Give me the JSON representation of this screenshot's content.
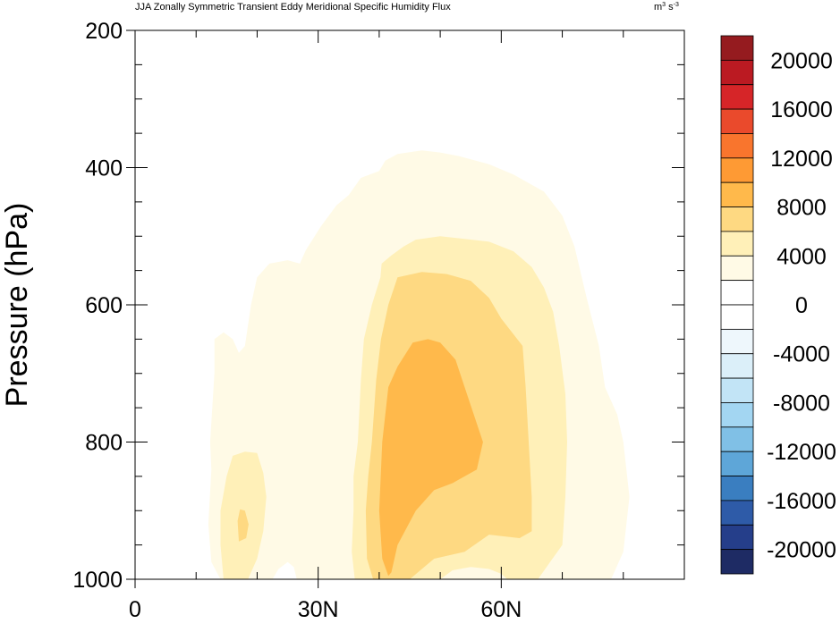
{
  "chart_data": {
    "type": "contour",
    "title": "JJA Zonally Symmetric Transient Eddy Meridional Specific Humidity Flux",
    "units_base": "m",
    "units_exp1": "3",
    "units_mid": " s",
    "units_exp2": "-3",
    "ylabel": "Pressure (hPa)",
    "xlabel": "",
    "x_range": [
      0,
      90
    ],
    "y_range": [
      1000,
      200
    ],
    "x_ticks": [
      {
        "value": 0,
        "label": "0"
      },
      {
        "value": 30,
        "label": "30N"
      },
      {
        "value": 60,
        "label": "60N"
      }
    ],
    "y_ticks": [
      {
        "value": 200,
        "label": "200"
      },
      {
        "value": 400,
        "label": "400"
      },
      {
        "value": 600,
        "label": "600"
      },
      {
        "value": 800,
        "label": "800"
      },
      {
        "value": 1000,
        "label": "1000"
      }
    ],
    "colorbar": {
      "colors": [
        "#1e2b64",
        "#253e8a",
        "#2e5ba8",
        "#3a7ec0",
        "#5ea6d8",
        "#80c0e6",
        "#a3d6f2",
        "#c2e4f6",
        "#dbeff9",
        "#eef7fc",
        "#ffffff",
        "#ffffff",
        "#fffae6",
        "#fff0b8",
        "#fed982",
        "#ffb94b",
        "#fe9a34",
        "#f9752d",
        "#ea4a2c",
        "#d62528",
        "#bb1a22",
        "#951b1f"
      ],
      "labels": [
        {
          "value": 20000,
          "label": "20000"
        },
        {
          "value": 16000,
          "label": "16000"
        },
        {
          "value": 12000,
          "label": "12000"
        },
        {
          "value": 8000,
          "label": "8000"
        },
        {
          "value": 4000,
          "label": "4000"
        },
        {
          "value": 0,
          "label": "0"
        },
        {
          "value": -4000,
          "label": "-4000"
        },
        {
          "value": -8000,
          "label": "-8000"
        },
        {
          "value": -12000,
          "label": "-12000"
        },
        {
          "value": -16000,
          "label": "-16000"
        },
        {
          "value": -20000,
          "label": "-20000"
        }
      ]
    },
    "contour_levels": [
      {
        "level": 2000,
        "color": "#fffae6",
        "path": [
          [
            14,
            1000
          ],
          [
            12.5,
            975
          ],
          [
            12,
            920
          ],
          [
            12.5,
            840
          ],
          [
            12.3,
            800
          ],
          [
            13,
            700
          ],
          [
            13,
            650
          ],
          [
            14.5,
            640
          ],
          [
            16,
            650
          ],
          [
            17,
            670
          ],
          [
            18,
            660
          ],
          [
            19,
            600
          ],
          [
            20,
            560
          ],
          [
            22,
            540
          ],
          [
            25,
            535
          ],
          [
            27,
            540
          ],
          [
            28,
            520
          ],
          [
            30.5,
            485
          ],
          [
            33,
            455
          ],
          [
            35,
            440
          ],
          [
            37,
            415
          ],
          [
            40,
            405
          ],
          [
            41,
            390
          ],
          [
            43,
            380
          ],
          [
            47,
            375
          ],
          [
            50,
            378
          ],
          [
            53,
            383
          ],
          [
            58,
            395
          ],
          [
            62,
            410
          ],
          [
            67,
            435
          ],
          [
            70,
            470
          ],
          [
            72,
            515
          ],
          [
            74,
            590
          ],
          [
            76,
            660
          ],
          [
            77,
            720
          ],
          [
            79,
            760
          ],
          [
            80,
            800
          ],
          [
            81,
            880
          ],
          [
            80,
            960
          ],
          [
            78,
            1000
          ]
        ]
      },
      {
        "level": 4000,
        "color": "#fff0b8",
        "path": [
          [
            36,
            1000
          ],
          [
            35.5,
            960
          ],
          [
            35.8,
            900
          ],
          [
            35.8,
            850
          ],
          [
            36.5,
            800
          ],
          [
            37,
            710
          ],
          [
            37.5,
            650
          ],
          [
            38.8,
            600
          ],
          [
            40.2,
            560
          ],
          [
            40.4,
            540
          ],
          [
            42,
            528
          ],
          [
            44,
            515
          ],
          [
            46,
            505
          ],
          [
            50,
            500
          ],
          [
            54,
            504
          ],
          [
            58,
            508
          ],
          [
            62,
            522
          ],
          [
            65,
            545
          ],
          [
            67,
            575
          ],
          [
            68.5,
            610
          ],
          [
            69.5,
            660
          ],
          [
            70.5,
            730
          ],
          [
            70.8,
            800
          ],
          [
            70.5,
            880
          ],
          [
            70,
            950
          ],
          [
            68,
            975
          ],
          [
            66,
            1000
          ]
        ]
      },
      {
        "level": 6000,
        "color": "#fed982",
        "path": [
          [
            39,
            1000
          ],
          [
            38,
            970
          ],
          [
            37.8,
            900
          ],
          [
            38.2,
            850
          ],
          [
            38.8,
            800
          ],
          [
            39.5,
            710
          ],
          [
            40.3,
            650
          ],
          [
            41.5,
            600
          ],
          [
            43,
            560
          ],
          [
            47,
            552
          ],
          [
            51,
            555
          ],
          [
            55,
            565
          ],
          [
            58,
            590
          ],
          [
            60,
            620
          ],
          [
            63.5,
            660
          ],
          [
            64,
            720
          ],
          [
            64.5,
            800
          ],
          [
            65,
            880
          ],
          [
            65,
            930
          ],
          [
            63,
            940
          ],
          [
            58,
            935
          ],
          [
            54,
            960
          ],
          [
            49,
            970
          ],
          [
            47,
            985
          ],
          [
            45,
            1000
          ]
        ]
      },
      {
        "level": 8000,
        "color": "#ffb94b",
        "path": [
          [
            41.5,
            995
          ],
          [
            40.5,
            970
          ],
          [
            40,
            900
          ],
          [
            40.5,
            800
          ],
          [
            41.5,
            720
          ],
          [
            43,
            690
          ],
          [
            45.5,
            655
          ],
          [
            48,
            650
          ],
          [
            50,
            655
          ],
          [
            52.5,
            680
          ],
          [
            54,
            720
          ],
          [
            57,
            800
          ],
          [
            56,
            840
          ],
          [
            52,
            860
          ],
          [
            49,
            870
          ],
          [
            46,
            900
          ],
          [
            43,
            950
          ],
          [
            42,
            990
          ]
        ]
      },
      {
        "level": 4000,
        "color": "#fff0b8",
        "path": [
          [
            14.5,
            1000
          ],
          [
            14,
            950
          ],
          [
            14,
            900
          ],
          [
            15,
            850
          ],
          [
            16,
            820
          ],
          [
            18,
            814
          ],
          [
            20,
            816
          ],
          [
            21,
            845
          ],
          [
            21.5,
            880
          ],
          [
            21,
            930
          ],
          [
            20,
            970
          ],
          [
            18.5,
            1000
          ]
        ]
      },
      {
        "level": 6000,
        "color": "#fed982",
        "path": [
          [
            17,
            945
          ],
          [
            16.8,
            915
          ],
          [
            17.2,
            898
          ],
          [
            18,
            900
          ],
          [
            18.6,
            920
          ],
          [
            18.2,
            940
          ]
        ]
      },
      {
        "level": 0,
        "color": "#ffffff",
        "path": [
          [
            22.5,
            1000
          ],
          [
            23.5,
            985
          ],
          [
            25,
            975
          ],
          [
            26,
            982
          ],
          [
            26.5,
            1000
          ]
        ]
      },
      {
        "level": 2000,
        "color": "#fffae6",
        "path": [
          [
            50,
            1000
          ],
          [
            52,
            987
          ],
          [
            55,
            982
          ],
          [
            58,
            985
          ],
          [
            60,
            992
          ],
          [
            61,
            1000
          ]
        ]
      }
    ]
  }
}
